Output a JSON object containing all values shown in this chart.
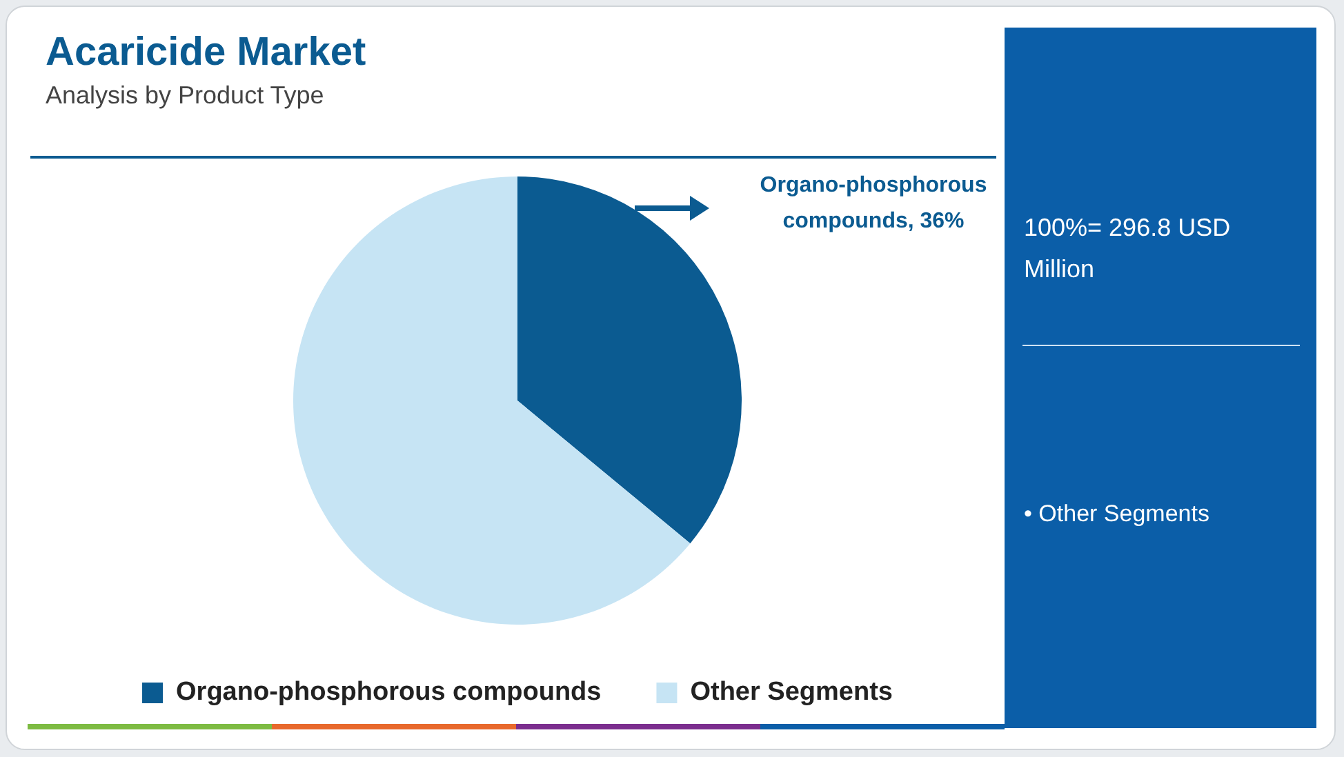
{
  "chart_data": {
    "type": "pie",
    "title": "Acaricide Market",
    "subtitle": "Analysis by Product Type",
    "categories": [
      "Organo-phosphorous compounds",
      "Other Segments"
    ],
    "values": [
      36,
      64
    ],
    "colors": [
      "#0b5b91",
      "#c6e4f4"
    ],
    "legend": "bottom",
    "annotations": [
      "Organo-phosphorous compounds, 36%",
      "100%= 296.8 USD Million",
      "• Other Segments"
    ]
  }
}
